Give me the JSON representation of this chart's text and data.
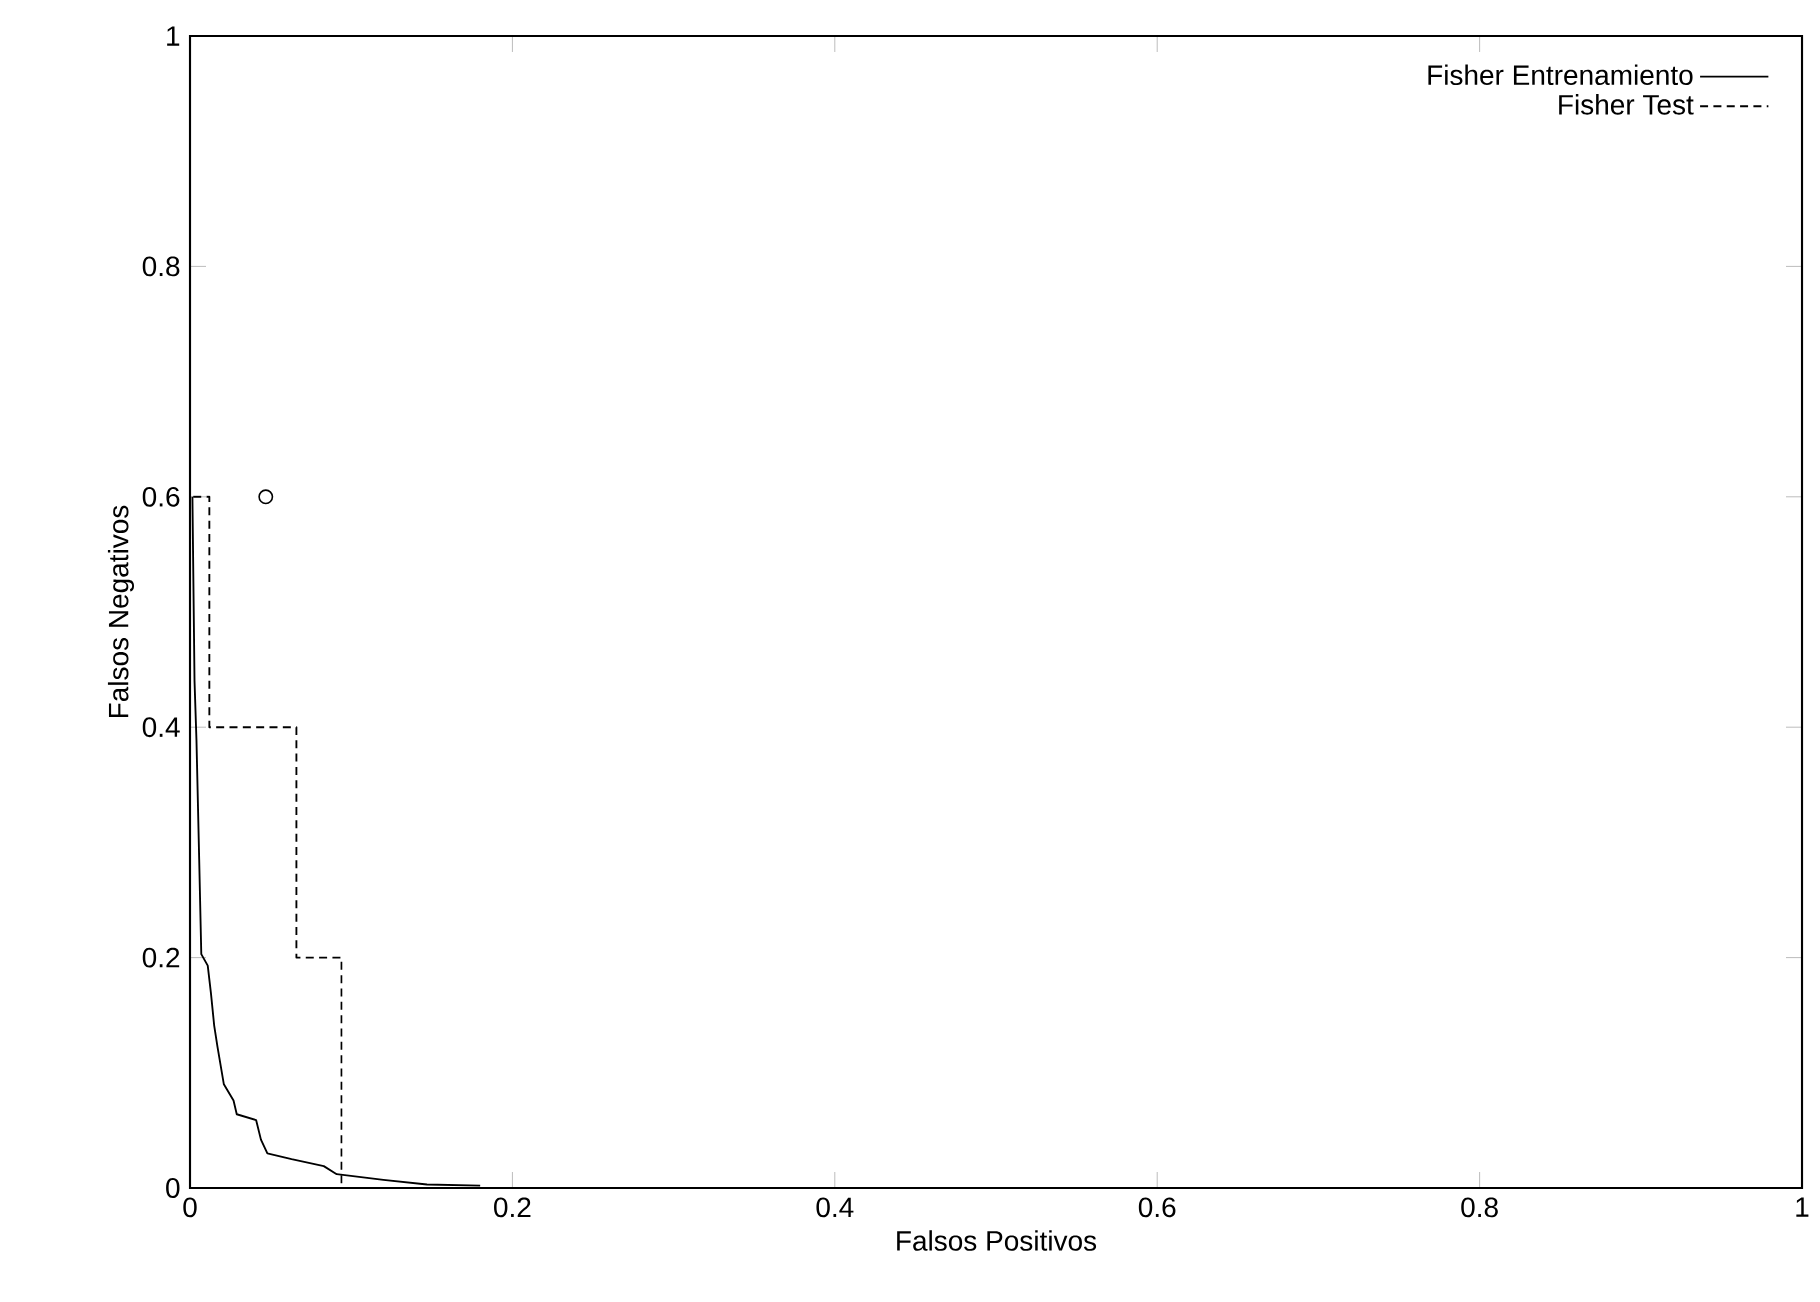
{
  "chart_data": {
    "type": "line",
    "xlabel": "Falsos Positivos",
    "ylabel": "Falsos Negativos",
    "xlim": [
      0,
      1
    ],
    "ylim": [
      0,
      1
    ],
    "xticks": [
      0,
      0.2,
      0.4,
      0.6,
      0.8,
      1
    ],
    "yticks": [
      0,
      0.2,
      0.4,
      0.6,
      0.8,
      1
    ],
    "grid": false,
    "legend": "top right",
    "series": [
      {
        "name": "Fisher Entrenamiento",
        "color": "#000000",
        "type": "line",
        "line_style": "solid",
        "marker": "none",
        "x": [
          0.0015,
          0.0028,
          0.004,
          0.0057,
          0.007,
          0.011,
          0.013,
          0.015,
          0.017,
          0.021,
          0.027,
          0.029,
          0.041,
          0.044,
          0.048,
          0.063,
          0.083,
          0.091,
          0.12,
          0.147,
          0.18
        ],
        "values": [
          0.6,
          0.44,
          0.389,
          0.285,
          0.203,
          0.193,
          0.169,
          0.141,
          0.123,
          0.09,
          0.076,
          0.064,
          0.059,
          0.042,
          0.03,
          0.025,
          0.019,
          0.012,
          0.007,
          0.003,
          0.002
        ]
      },
      {
        "name": "Fisher Test",
        "color": "#000000",
        "type": "step",
        "line_style": "dashed",
        "marker": "none",
        "x": [
          0.002,
          0.012,
          0.066,
          0.094
        ],
        "values": [
          0.6,
          0.4,
          0.2,
          0
        ]
      },
      {
        "color": "#000000",
        "type": "scatter",
        "marker": "circle",
        "x": [
          0.047
        ],
        "values": [
          0.6
        ]
      }
    ]
  }
}
